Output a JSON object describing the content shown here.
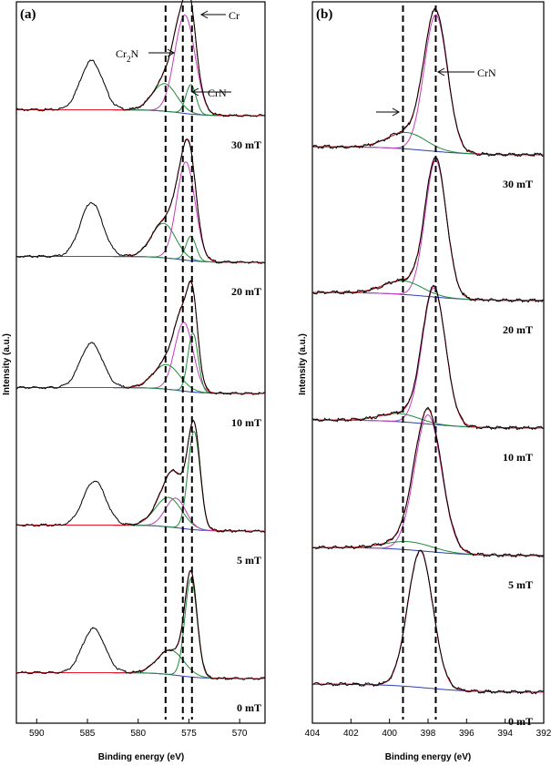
{
  "chart_data": [
    {
      "panel": "(a)",
      "type": "line",
      "xlabel": "Binding energy (eV)",
      "ylabel": "Intensity (a.u.)",
      "xlim": [
        592,
        567.5
      ],
      "x_ticks": [
        590,
        585,
        580,
        575,
        570
      ],
      "x_tick_labels": [
        "590",
        "585",
        "580",
        "575",
        "570"
      ],
      "reversed_x": true,
      "reference_lines_eV": [
        577.3,
        575.6,
        574.7
      ],
      "annotations": [
        {
          "text": "Cr",
          "x": 574.6
        },
        {
          "text": "Cr",
          "sub": "2",
          "rest": "N",
          "x": 575.5
        },
        {
          "text": "CrN",
          "x": 575.0
        }
      ],
      "colors": {
        "measured": "#000000",
        "fit": "#e8192c",
        "CrN": "#c43db8",
        "Cr2N": "#1f8a3a",
        "Cr": "#1f8a3a",
        "background": "#2a3fb5"
      },
      "spectra": [
        {
          "label": "30 mT",
          "peaks": [
            {
              "name": "Cr2N",
              "center": 577.4,
              "height": 0.28,
              "width": 1.2
            },
            {
              "name": "CrN",
              "center": 575.4,
              "height": 1.0,
              "width": 1.0
            },
            {
              "name": "Cr",
              "center": 574.8,
              "height": 0.3,
              "width": 0.5
            }
          ],
          "satellite": {
            "center": 584.6,
            "height": 0.5
          }
        },
        {
          "label": "20 mT",
          "peaks": [
            {
              "name": "Cr2N",
              "center": 577.5,
              "height": 0.35,
              "width": 1.2
            },
            {
              "name": "CrN",
              "center": 575.3,
              "height": 1.0,
              "width": 0.9
            },
            {
              "name": "Cr",
              "center": 574.8,
              "height": 0.25,
              "width": 0.5
            }
          ],
          "satellite": {
            "center": 584.6,
            "height": 0.55
          }
        },
        {
          "label": "10 mT",
          "peaks": [
            {
              "name": "Cr2N",
              "center": 577.2,
              "height": 0.25,
              "width": 1.3
            },
            {
              "name": "CrN",
              "center": 575.5,
              "height": 0.7,
              "width": 0.9
            },
            {
              "name": "Cr",
              "center": 574.6,
              "height": 0.6,
              "width": 0.5
            }
          ],
          "satellite": {
            "center": 584.6,
            "height": 0.45
          }
        },
        {
          "label": "5 mT",
          "peaks": [
            {
              "name": "Cr2N",
              "center": 577.0,
              "height": 0.3,
              "width": 1.3
            },
            {
              "name": "CrN",
              "center": 576.3,
              "height": 0.3,
              "width": 1.0
            },
            {
              "name": "Cr",
              "center": 574.5,
              "height": 1.0,
              "width": 0.6
            }
          ],
          "satellite": {
            "center": 584.3,
            "height": 0.45
          }
        },
        {
          "label": "0 mT",
          "peaks": [
            {
              "name": "Cr2N",
              "center": 576.8,
              "height": 0.25,
              "width": 1.3
            },
            {
              "name": "Cr",
              "center": 574.8,
              "height": 1.0,
              "width": 0.6
            }
          ],
          "satellite": {
            "center": 584.4,
            "height": 0.45
          }
        }
      ]
    },
    {
      "panel": "(b)",
      "type": "line",
      "xlabel": "Binding energy (eV)",
      "ylabel": "Intensity (a.u.)",
      "xlim": [
        404,
        392
      ],
      "x_ticks": [
        404,
        402,
        400,
        398,
        396,
        394,
        392
      ],
      "x_tick_labels": [
        "404",
        "402",
        "400",
        "398",
        "396",
        "394",
        "392"
      ],
      "reversed_x": true,
      "reference_lines_eV": [
        399.3,
        397.6
      ],
      "annotations": [
        {
          "text": "CrN",
          "x": 397.6
        }
      ],
      "colors": {
        "measured": "#000000",
        "fit": "#e8192c",
        "CrN": "#c43db8",
        "side": "#1f8a3a",
        "background": "#2a3fb5"
      },
      "spectra": [
        {
          "label": "30 mT",
          "peaks": [
            {
              "name": "CrN",
              "center": 397.6,
              "height": 1.0,
              "width": 0.6
            },
            {
              "name": "side",
              "center": 399.1,
              "height": 0.12,
              "width": 1.0
            }
          ]
        },
        {
          "label": "20 mT",
          "peaks": [
            {
              "name": "CrN",
              "center": 397.6,
              "height": 1.0,
              "width": 0.55
            },
            {
              "name": "side",
              "center": 399.3,
              "height": 0.1,
              "width": 1.0
            }
          ]
        },
        {
          "label": "10 mT",
          "peaks": [
            {
              "name": "CrN",
              "center": 397.7,
              "height": 1.0,
              "width": 0.6
            },
            {
              "name": "side",
              "center": 399.5,
              "height": 0.06,
              "width": 1.0
            }
          ]
        },
        {
          "label": "5 mT",
          "peaks": [
            {
              "name": "CrN",
              "center": 398.0,
              "height": 1.0,
              "width": 0.7
            },
            {
              "name": "side",
              "center": 399.0,
              "height": 0.06,
              "width": 1.2
            }
          ]
        },
        {
          "label": "0 mT",
          "peaks": [
            {
              "name": "CrN",
              "center": 398.4,
              "height": 1.0,
              "width": 0.65
            }
          ]
        }
      ]
    }
  ]
}
